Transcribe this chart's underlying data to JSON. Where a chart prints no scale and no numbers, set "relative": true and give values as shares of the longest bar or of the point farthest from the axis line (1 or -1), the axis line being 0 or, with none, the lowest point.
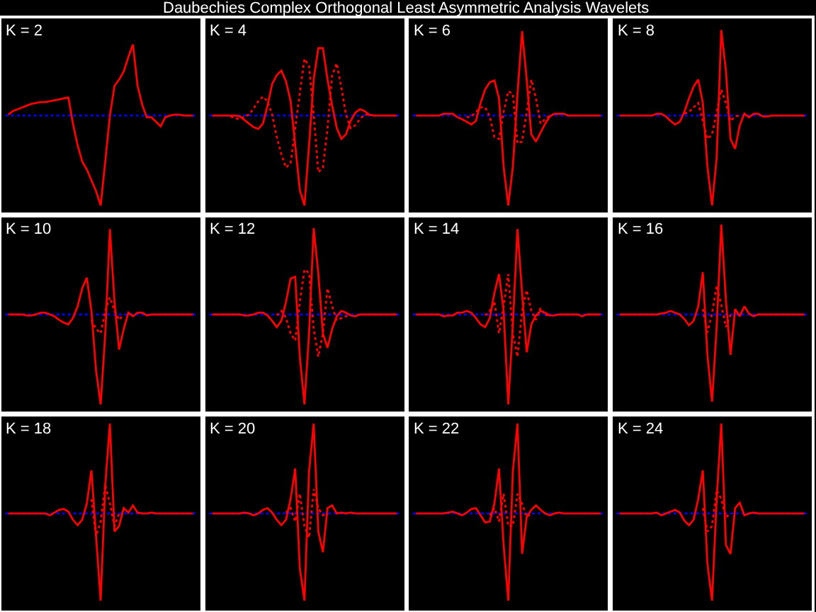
{
  "chart_data": [
    {
      "type": "line",
      "title": "K = 2",
      "relative": true,
      "annotations": [
        "Daubechies Complex Orthogonal Least Asymmetric Analysis Wavelets"
      ],
      "ref_lines": [
        {
          "axis": "y",
          "value": 0,
          "color": "#0000ff",
          "line_style": "dotted"
        }
      ],
      "categories": [
        null,
        null,
        null,
        null,
        null,
        null,
        null,
        null,
        null,
        null,
        null,
        null,
        null,
        null,
        null,
        null,
        null,
        null,
        null,
        null,
        null,
        null,
        null,
        null,
        null,
        null,
        null,
        null,
        null,
        null,
        null,
        null,
        null,
        null,
        null,
        null,
        null,
        null,
        null,
        null,
        null
      ],
      "series": [
        {
          "color": "#ff0000",
          "values": [
            0.01,
            0.05,
            0.07,
            0.09,
            0.11,
            0.13,
            0.14,
            0.15,
            0.15,
            0.16,
            0.17,
            0.18,
            0.19,
            0.2,
            -0.09,
            -0.33,
            -0.51,
            -0.6,
            -0.72,
            -0.84,
            -1,
            -0.51,
            0,
            0.33,
            0.4,
            0.49,
            0.65,
            0.79,
            0.33,
            0.12,
            -0.02,
            -0.02,
            -0.07,
            -0.12,
            -0.02,
            0,
            0.01,
            0.01,
            0,
            0,
            0
          ]
        }
      ]
    },
    {
      "type": "line",
      "title": "K = 4",
      "relative": true,
      "ref_lines": [
        {
          "axis": "y",
          "value": 0,
          "color": "#0000ff",
          "line_style": "dotted"
        }
      ],
      "categories": [
        null,
        null,
        null,
        null,
        null,
        null,
        null,
        null,
        null,
        null,
        null,
        null,
        null,
        null,
        null,
        null,
        null,
        null,
        null,
        null,
        null,
        null,
        null,
        null,
        null,
        null,
        null,
        null,
        null,
        null,
        null,
        null,
        null,
        null,
        null,
        null,
        null,
        null,
        null,
        null,
        null
      ],
      "series": [
        {
          "color": "#ff0000",
          "line_style": "dotted",
          "values": [
            null,
            null,
            null,
            null,
            -0.01,
            -0.03,
            -0.04,
            -0.01,
            0.01,
            0.08,
            0.16,
            0.21,
            0.16,
            0.01,
            -0.24,
            -0.43,
            -0.58,
            -0.53,
            -0.14,
            0.25,
            0.63,
            0.55,
            0.01,
            -0.63,
            -0.58,
            -0.14,
            0.45,
            0.58,
            0.31,
            0.01,
            -0.14,
            -0.11,
            -0.04,
            0.01,
            0.01,
            0,
            null,
            null,
            null,
            null,
            null
          ]
        },
        {
          "color": "#ff0000",
          "values": [
            0,
            0,
            0,
            0,
            0,
            0,
            -0.01,
            -0.05,
            -0.09,
            -0.13,
            -0.15,
            -0.09,
            0.11,
            0.35,
            0.45,
            0.5,
            0.38,
            0.16,
            -0.33,
            -0.83,
            -1,
            -0.33,
            0.4,
            0.75,
            0.75,
            0.4,
            0.11,
            -0.14,
            -0.26,
            -0.21,
            -0.06,
            0.03,
            0.07,
            0.05,
            0.01,
            0,
            0,
            0,
            0,
            0,
            0
          ]
        }
      ]
    },
    {
      "type": "line",
      "title": "K = 6",
      "relative": true,
      "ref_lines": [
        {
          "axis": "y",
          "value": 0,
          "color": "#0000ff",
          "line_style": "dotted"
        }
      ],
      "categories": [
        null,
        null,
        null,
        null,
        null,
        null,
        null,
        null,
        null,
        null,
        null,
        null,
        null,
        null,
        null,
        null,
        null,
        null,
        null,
        null,
        null,
        null,
        null,
        null,
        null,
        null,
        null,
        null,
        null,
        null,
        null,
        null,
        null,
        null,
        null,
        null,
        null,
        null,
        null,
        null,
        null
      ],
      "series": [
        {
          "color": "#ff0000",
          "line_style": "dotted",
          "values": [
            null,
            null,
            null,
            null,
            null,
            null,
            null,
            null,
            null,
            null,
            null,
            -0.02,
            -0.01,
            0.04,
            0.09,
            0.09,
            -0.01,
            -0.24,
            -0.26,
            0.04,
            0.27,
            0.24,
            -0.31,
            -0.29,
            0.04,
            0.4,
            0.19,
            -0.09,
            -0.04,
            0,
            null,
            null,
            null,
            null,
            null,
            null,
            null,
            null,
            null,
            null,
            null
          ]
        },
        {
          "color": "#ff0000",
          "values": [
            0,
            0,
            0,
            0,
            0,
            0,
            0.02,
            0.02,
            0.02,
            -0.02,
            -0.04,
            -0.07,
            -0.1,
            -0.06,
            0.14,
            0.29,
            0.37,
            0.39,
            0.19,
            -0.57,
            -1,
            -0.57,
            0.24,
            0.94,
            0.4,
            -0.21,
            -0.29,
            -0.19,
            -0.09,
            -0.01,
            0.02,
            0.02,
            0.02,
            0,
            0,
            0,
            0,
            0,
            0,
            0,
            0
          ]
        }
      ]
    },
    {
      "type": "line",
      "title": "K = 8",
      "relative": true,
      "ref_lines": [
        {
          "axis": "y",
          "value": 0,
          "color": "#0000ff",
          "line_style": "dotted"
        }
      ],
      "categories": [
        null,
        null,
        null,
        null,
        null,
        null,
        null,
        null,
        null,
        null,
        null,
        null,
        null,
        null,
        null,
        null,
        null,
        null,
        null,
        null,
        null,
        null,
        null,
        null,
        null,
        null,
        null,
        null,
        null,
        null,
        null,
        null,
        null,
        null,
        null,
        null,
        null,
        null,
        null,
        null,
        null
      ],
      "series": [
        {
          "color": "#ff0000",
          "line_style": "dotted",
          "values": [
            null,
            null,
            null,
            null,
            null,
            null,
            null,
            null,
            null,
            null,
            null,
            null,
            null,
            null,
            0.02,
            0.04,
            0.09,
            0.14,
            -0.06,
            -0.26,
            -0.21,
            0.04,
            0.29,
            0.14,
            -0.06,
            -0.01,
            0,
            null,
            null,
            null,
            null,
            null,
            null,
            null,
            null,
            null,
            null,
            null,
            null,
            null,
            null
          ]
        },
        {
          "color": "#ff0000",
          "values": [
            0,
            0,
            0,
            0,
            0,
            0,
            0,
            0,
            0.02,
            0.02,
            -0.01,
            -0.06,
            -0.1,
            -0.07,
            0.04,
            0.19,
            0.32,
            0.4,
            0.14,
            -0.57,
            -1,
            -0.47,
            0.95,
            0.5,
            -0.26,
            -0.37,
            -0.11,
            0.02,
            -0.02,
            0.02,
            0.02,
            -0.01,
            -0.01,
            0,
            0,
            0,
            0,
            0,
            0,
            0,
            0
          ]
        }
      ]
    },
    {
      "type": "line",
      "title": "K = 10",
      "relative": true,
      "ref_lines": [
        {
          "axis": "y",
          "value": 0,
          "color": "#0000ff",
          "line_style": "dotted"
        }
      ],
      "categories": [
        null,
        null,
        null,
        null,
        null,
        null,
        null,
        null,
        null,
        null,
        null,
        null,
        null,
        null,
        null,
        null,
        null,
        null,
        null,
        null,
        null,
        null,
        null,
        null,
        null,
        null,
        null,
        null,
        null,
        null,
        null,
        null,
        null,
        null,
        null,
        null,
        null,
        null,
        null,
        null,
        null
      ],
      "series": [
        {
          "color": "#ff0000",
          "line_style": "dotted",
          "values": [
            null,
            null,
            null,
            null,
            null,
            null,
            null,
            null,
            null,
            null,
            null,
            null,
            null,
            null,
            null,
            null,
            null,
            null,
            -0.06,
            -0.16,
            -0.21,
            0.04,
            0.19,
            0.04,
            -0.06,
            0,
            null,
            null,
            null,
            null,
            null,
            null,
            null,
            null,
            null,
            null,
            null,
            null,
            null,
            null,
            null
          ]
        },
        {
          "color": "#ff0000",
          "values": [
            0,
            0,
            0,
            0,
            -0.01,
            -0.01,
            0,
            0.02,
            0.02,
            0,
            -0.02,
            -0.06,
            -0.09,
            -0.11,
            -0.04,
            0.09,
            0.29,
            0.41,
            0.04,
            -0.62,
            -1,
            -0.21,
            0.95,
            0.14,
            -0.39,
            -0.16,
            0.02,
            -0.02,
            0.02,
            0.02,
            -0.01,
            0,
            0,
            0,
            0,
            0,
            0,
            0,
            0,
            0,
            0
          ]
        }
      ]
    },
    {
      "type": "line",
      "title": "K = 12",
      "relative": true,
      "ref_lines": [
        {
          "axis": "y",
          "value": 0,
          "color": "#0000ff",
          "line_style": "dotted"
        }
      ],
      "categories": [
        null,
        null,
        null,
        null,
        null,
        null,
        null,
        null,
        null,
        null,
        null,
        null,
        null,
        null,
        null,
        null,
        null,
        null,
        null,
        null,
        null,
        null,
        null,
        null,
        null,
        null,
        null,
        null,
        null,
        null,
        null,
        null,
        null,
        null,
        null,
        null,
        null,
        null,
        null,
        null,
        null
      ],
      "series": [
        {
          "color": "#ff0000",
          "line_style": "dotted",
          "values": [
            null,
            null,
            null,
            null,
            null,
            null,
            null,
            null,
            null,
            null,
            null,
            null,
            null,
            null,
            -0.01,
            0.04,
            -0.04,
            -0.21,
            -0.29,
            0.14,
            0.5,
            0.46,
            -0.16,
            -0.47,
            -0.21,
            0.29,
            0.09,
            -0.06,
            -0.04,
            -0.02,
            0,
            null,
            null,
            null,
            null,
            null,
            null,
            null,
            null,
            null,
            null
          ]
        },
        {
          "color": "#ff0000",
          "values": [
            0,
            0,
            0,
            0,
            0,
            0,
            0,
            -0.01,
            -0.01,
            0,
            0.02,
            0.02,
            -0.01,
            -0.07,
            -0.14,
            -0.07,
            0.14,
            0.4,
            0.42,
            -0.47,
            -1,
            -0.21,
            0.96,
            0.46,
            -0.21,
            -0.37,
            -0.16,
            -0.02,
            0.04,
            0.02,
            -0.01,
            -0.02,
            0,
            0,
            0,
            0,
            0,
            0,
            0,
            0,
            0
          ]
        }
      ]
    },
    {
      "type": "line",
      "title": "K = 14",
      "relative": true,
      "ref_lines": [
        {
          "axis": "y",
          "value": 0,
          "color": "#0000ff",
          "line_style": "dotted"
        }
      ],
      "categories": [
        null,
        null,
        null,
        null,
        null,
        null,
        null,
        null,
        null,
        null,
        null,
        null,
        null,
        null,
        null,
        null,
        null,
        null,
        null,
        null,
        null,
        null,
        null,
        null,
        null,
        null,
        null,
        null,
        null,
        null,
        null,
        null,
        null,
        null,
        null,
        null,
        null,
        null,
        null,
        null,
        null
      ],
      "series": [
        {
          "color": "#ff0000",
          "line_style": "dotted",
          "values": [
            null,
            null,
            null,
            null,
            null,
            null,
            null,
            null,
            null,
            null,
            null,
            null,
            null,
            null,
            null,
            -0.01,
            0.04,
            0.14,
            -0.21,
            0.09,
            0.45,
            -0.21,
            -0.47,
            0.04,
            0.27,
            0.04,
            -0.06,
            0.07,
            -0.01,
            0,
            null,
            null,
            null,
            null,
            null,
            null,
            null,
            null,
            null,
            null,
            null
          ]
        },
        {
          "color": "#ff0000",
          "values": [
            0,
            0,
            0,
            0,
            0,
            0,
            -0.02,
            -0.01,
            -0.01,
            0.02,
            0.02,
            0.04,
            0.02,
            -0.04,
            -0.11,
            -0.14,
            -0.04,
            0.24,
            0.45,
            0.04,
            -1,
            -0.11,
            0.95,
            0.24,
            -0.42,
            -0.11,
            -0.01,
            0.04,
            0.02,
            -0.01,
            -0.01,
            0,
            0,
            0,
            0,
            0,
            -0.02,
            0,
            0,
            0,
            0
          ]
        }
      ]
    },
    {
      "type": "line",
      "title": "K = 16",
      "relative": true,
      "ref_lines": [
        {
          "axis": "y",
          "value": 0,
          "color": "#0000ff",
          "line_style": "dotted"
        }
      ],
      "categories": [
        null,
        null,
        null,
        null,
        null,
        null,
        null,
        null,
        null,
        null,
        null,
        null,
        null,
        null,
        null,
        null,
        null,
        null,
        null,
        null,
        null,
        null,
        null,
        null,
        null,
        null,
        null,
        null,
        null,
        null,
        null,
        null,
        null,
        null,
        null,
        null,
        null,
        null,
        null,
        null,
        null
      ],
      "series": [
        {
          "color": "#ff0000",
          "line_style": "dotted",
          "values": [
            null,
            null,
            null,
            null,
            null,
            null,
            null,
            null,
            null,
            null,
            null,
            null,
            null,
            null,
            null,
            null,
            null,
            null,
            0.06,
            -0.2,
            0.01,
            0.32,
            0.11,
            -0.14,
            0,
            null,
            null,
            null,
            null,
            null,
            null,
            null,
            null,
            null,
            null,
            null,
            null,
            null,
            null,
            null,
            null
          ]
        },
        {
          "color": "#ff0000",
          "values": [
            0,
            0,
            0,
            0,
            0,
            0,
            0,
            0,
            0,
            0.01,
            0.02,
            0.04,
            0.02,
            0,
            -0.05,
            -0.12,
            -0.07,
            0.09,
            0.47,
            -0.45,
            -0.97,
            -0.14,
            1,
            0.16,
            -0.45,
            0.06,
            -0.02,
            0.09,
            0.01,
            -0.02,
            0,
            0,
            0,
            0,
            0,
            0,
            0,
            0,
            0,
            0,
            0
          ]
        }
      ]
    },
    {
      "type": "line",
      "title": "K = 18",
      "relative": true,
      "ref_lines": [
        {
          "axis": "y",
          "value": 0,
          "color": "#0000ff",
          "line_style": "dotted"
        }
      ],
      "categories": [
        null,
        null,
        null,
        null,
        null,
        null,
        null,
        null,
        null,
        null,
        null,
        null,
        null,
        null,
        null,
        null,
        null,
        null,
        null,
        null,
        null,
        null,
        null,
        null,
        null,
        null,
        null,
        null,
        null,
        null,
        null,
        null,
        null,
        null,
        null,
        null,
        null,
        null,
        null,
        null,
        null
      ],
      "series": [
        {
          "color": "#ff0000",
          "line_style": "dotted",
          "values": [
            null,
            null,
            null,
            null,
            null,
            null,
            null,
            null,
            null,
            null,
            null,
            null,
            null,
            null,
            null,
            null,
            null,
            null,
            0.16,
            -0.25,
            -0.09,
            0.32,
            0.11,
            -0.14,
            0,
            null,
            null,
            null,
            null,
            null,
            null,
            null,
            null,
            null,
            null,
            null,
            null,
            null,
            null,
            null,
            null
          ]
        },
        {
          "color": "#ff0000",
          "values": [
            0,
            0,
            0,
            0,
            0,
            0,
            0,
            0,
            0,
            -0.02,
            0.01,
            0.04,
            0.05,
            0.02,
            -0.07,
            -0.13,
            -0.07,
            0.11,
            0.48,
            -0.25,
            -0.97,
            0.32,
            1,
            -0.2,
            -0.14,
            0.06,
            0.01,
            0.09,
            0.01,
            0,
            0,
            0.01,
            0,
            0,
            0,
            0,
            0,
            0,
            0,
            0,
            0
          ]
        }
      ]
    },
    {
      "type": "line",
      "title": "K = 20",
      "relative": true,
      "ref_lines": [
        {
          "axis": "y",
          "value": 0,
          "color": "#0000ff",
          "line_style": "dotted"
        }
      ],
      "categories": [
        null,
        null,
        null,
        null,
        null,
        null,
        null,
        null,
        null,
        null,
        null,
        null,
        null,
        null,
        null,
        null,
        null,
        null,
        null,
        null,
        null,
        null,
        null,
        null,
        null,
        null,
        null,
        null,
        null,
        null,
        null,
        null,
        null,
        null,
        null,
        null,
        null,
        null,
        null,
        null,
        null
      ],
      "series": [
        {
          "color": "#ff0000",
          "line_style": "dotted",
          "values": [
            null,
            null,
            null,
            null,
            null,
            null,
            null,
            null,
            null,
            null,
            null,
            null,
            null,
            null,
            null,
            null,
            0.01,
            0.06,
            -0.09,
            0.22,
            -0.14,
            -0.27,
            0.27,
            0.06,
            -0.02,
            0,
            null,
            null,
            null,
            null,
            null,
            null,
            null,
            null,
            null,
            null,
            null,
            null,
            null,
            null,
            null
          ]
        },
        {
          "color": "#ff0000",
          "values": [
            0,
            0,
            0,
            0,
            0,
            0,
            0,
            0.01,
            0,
            -0.02,
            0,
            0.04,
            0.06,
            0.01,
            -0.07,
            -0.13,
            -0.07,
            0.16,
            0.5,
            -0.61,
            -0.97,
            0.47,
            1,
            -0.2,
            -0.43,
            0.06,
            0.09,
            0,
            0.01,
            0,
            0.01,
            0,
            0,
            0,
            0,
            0,
            0,
            0,
            0,
            0,
            0
          ]
        }
      ]
    },
    {
      "type": "line",
      "title": "K = 22",
      "relative": true,
      "ref_lines": [
        {
          "axis": "y",
          "value": 0,
          "color": "#0000ff",
          "line_style": "dotted"
        }
      ],
      "categories": [
        null,
        null,
        null,
        null,
        null,
        null,
        null,
        null,
        null,
        null,
        null,
        null,
        null,
        null,
        null,
        null,
        null,
        null,
        null,
        null,
        null,
        null,
        null,
        null,
        null,
        null,
        null,
        null,
        null,
        null,
        null,
        null,
        null,
        null,
        null,
        null,
        null,
        null,
        null,
        null,
        null
      ],
      "series": [
        {
          "color": "#ff0000",
          "line_style": "dotted",
          "values": [
            null,
            null,
            null,
            null,
            null,
            null,
            null,
            null,
            null,
            null,
            null,
            null,
            null,
            null,
            null,
            null,
            -0.02,
            0.06,
            -0.09,
            0.22,
            -0.14,
            -0.14,
            0.22,
            0.11,
            -0.04,
            0,
            null,
            null,
            null,
            null,
            null,
            null,
            null,
            null,
            null,
            null,
            null,
            null,
            null,
            null,
            null
          ]
        },
        {
          "color": "#ff0000",
          "values": [
            0,
            0,
            0,
            0,
            0,
            0,
            0,
            0.01,
            0.02,
            0,
            -0.02,
            0.01,
            0.05,
            0.06,
            -0.02,
            -0.1,
            -0.09,
            0.11,
            0.5,
            -0.35,
            -0.97,
            0.47,
            1,
            -0.45,
            -0.04,
            0.04,
            0.09,
            0.04,
            0,
            -0.02,
            0,
            0.01,
            0,
            0,
            0,
            0,
            0,
            0,
            0,
            0,
            0
          ]
        }
      ]
    },
    {
      "type": "line",
      "title": "K = 24",
      "relative": true,
      "ref_lines": [
        {
          "axis": "y",
          "value": 0,
          "color": "#0000ff",
          "line_style": "dotted"
        }
      ],
      "categories": [
        null,
        null,
        null,
        null,
        null,
        null,
        null,
        null,
        null,
        null,
        null,
        null,
        null,
        null,
        null,
        null,
        null,
        null,
        null,
        null,
        null,
        null,
        null,
        null,
        null,
        null,
        null,
        null,
        null,
        null,
        null,
        null,
        null,
        null,
        null,
        null,
        null,
        null,
        null,
        null,
        null
      ],
      "series": [
        {
          "color": "#ff0000",
          "line_style": "dotted",
          "values": [
            null,
            null,
            null,
            null,
            null,
            null,
            null,
            null,
            null,
            null,
            null,
            null,
            null,
            null,
            null,
            null,
            null,
            null,
            0.06,
            -0.2,
            -0.14,
            0.26,
            0.16,
            -0.04,
            0,
            null,
            null,
            null,
            null,
            null,
            null,
            null,
            null,
            null,
            null,
            null,
            null,
            null,
            null,
            null,
            null
          ]
        },
        {
          "color": "#ff0000",
          "values": [
            0,
            0,
            0,
            0,
            0,
            0,
            0,
            0,
            0.01,
            -0.02,
            0,
            0.02,
            0.04,
            0.01,
            -0.08,
            -0.13,
            -0.07,
            0.16,
            0.48,
            -0.56,
            -0.97,
            0.16,
            1,
            -0.35,
            -0.45,
            0.06,
            0.12,
            -0.02,
            0,
            0.01,
            0,
            0,
            0,
            0,
            0,
            0,
            0,
            0,
            0,
            0,
            0
          ]
        }
      ]
    }
  ]
}
